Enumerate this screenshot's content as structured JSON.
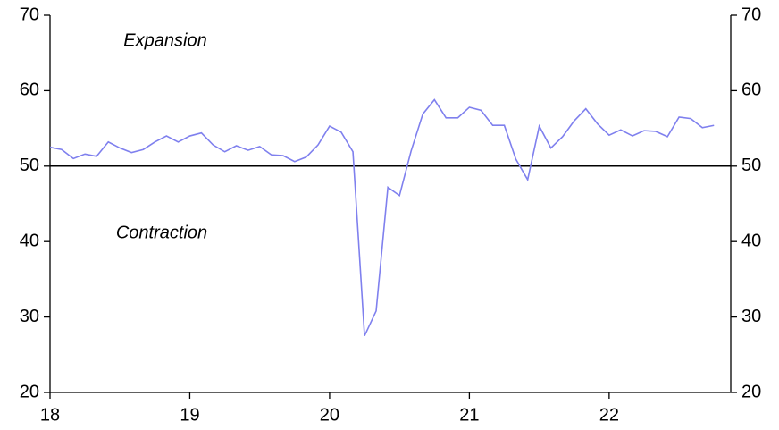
{
  "chart_data": {
    "type": "line",
    "annotations": [
      "Expansion",
      "Contraction"
    ],
    "x": [
      18,
      18.083,
      18.167,
      18.25,
      18.333,
      18.417,
      18.5,
      18.583,
      18.667,
      18.75,
      18.833,
      18.917,
      19,
      19.083,
      19.167,
      19.25,
      19.333,
      19.417,
      19.5,
      19.583,
      19.667,
      19.75,
      19.833,
      19.917,
      20,
      20.083,
      20.167,
      20.25,
      20.333,
      20.417,
      20.5,
      20.583,
      20.667,
      20.75,
      20.833,
      20.917,
      21,
      21.083,
      21.167,
      21.25,
      21.333,
      21.417,
      21.5,
      21.583,
      21.667,
      21.75,
      21.833,
      21.917,
      22,
      22.083,
      22.167,
      22.25,
      22.333,
      22.417,
      22.5,
      22.583,
      22.667,
      22.75
    ],
    "series": [
      {
        "color": "#7f80ee",
        "values": [
          52.5,
          52.2,
          51.0,
          51.6,
          51.3,
          53.2,
          52.4,
          51.8,
          52.2,
          53.2,
          54.0,
          53.2,
          54.0,
          54.4,
          52.8,
          51.9,
          52.7,
          52.1,
          52.6,
          51.5,
          51.4,
          50.6,
          51.2,
          52.8,
          55.3,
          54.5,
          51.9,
          27.5,
          30.8,
          47.2,
          46.1,
          52.0,
          56.9,
          58.8,
          56.4,
          56.4,
          57.8,
          57.4,
          55.4,
          55.4,
          50.9,
          48.2,
          55.3,
          52.4,
          53.9,
          56.0,
          57.6,
          55.6,
          54.1,
          54.8,
          54.0,
          54.7,
          54.6,
          53.9,
          56.5,
          56.3,
          55.1,
          55.4
        ]
      }
    ],
    "reference_line": 50,
    "xlim": [
      18,
      22.87
    ],
    "xticks": [
      18,
      19,
      20,
      21,
      22
    ],
    "ylim": [
      20,
      70
    ],
    "yticks": [
      20,
      30,
      40,
      50,
      60,
      70
    ],
    "y2lim": [
      20,
      70
    ],
    "y2ticks": [
      20,
      30,
      40,
      50,
      60,
      70
    ]
  }
}
